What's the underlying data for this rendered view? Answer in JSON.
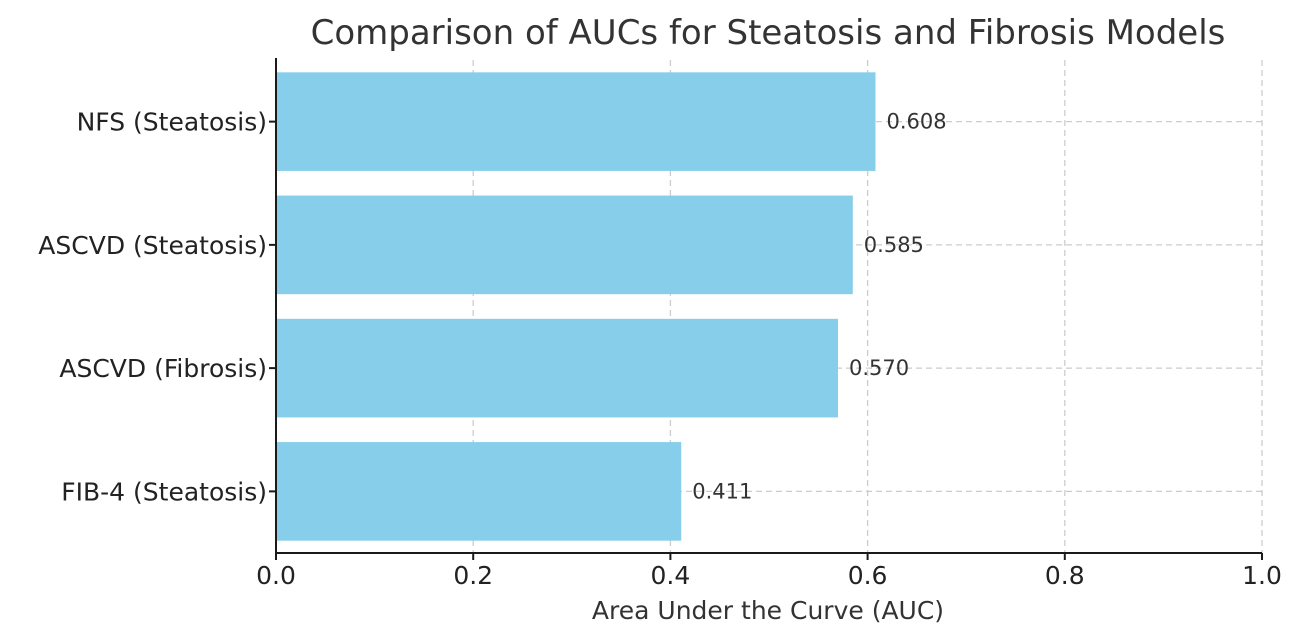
{
  "chart_data": {
    "type": "bar",
    "orientation": "horizontal",
    "title": "Comparison of AUCs for Steatosis and Fibrosis Models",
    "xlabel": "Area Under the Curve (AUC)",
    "ylabel": "",
    "categories": [
      "FIB-4 (Steatosis)",
      "ASCVD (Fibrosis)",
      "ASCVD (Steatosis)",
      "NFS (Steatosis)"
    ],
    "values": [
      0.411,
      0.57,
      0.585,
      0.608
    ],
    "data_labels": [
      "0.411",
      "0.570",
      "0.585",
      "0.608"
    ],
    "xlim": [
      0.0,
      1.0
    ],
    "xticks": [
      0.0,
      0.2,
      0.4,
      0.6,
      0.8,
      1.0
    ],
    "xtick_labels": [
      "0.0",
      "0.2",
      "0.4",
      "0.6",
      "0.8",
      "1.0"
    ],
    "grid": true,
    "bar_color": "#87ceeb"
  }
}
